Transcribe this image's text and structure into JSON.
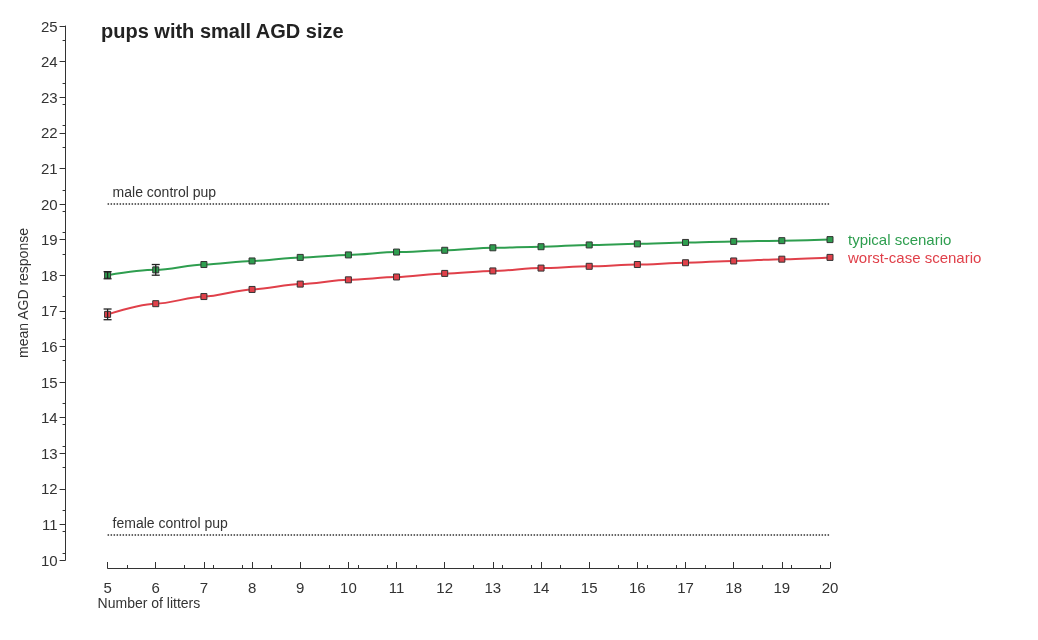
{
  "chart_data": {
    "type": "line",
    "title": "pups with small AGD size",
    "xlabel": "Number of litters",
    "ylabel": "mean AGD response",
    "x": [
      5,
      6,
      7,
      8,
      9,
      10,
      11,
      12,
      13,
      14,
      15,
      16,
      17,
      18,
      19,
      20
    ],
    "series": [
      {
        "name": "typical scenario",
        "color": "#2e9e4f",
        "values": [
          18.0,
          18.15,
          18.3,
          18.4,
          18.5,
          18.57,
          18.65,
          18.7,
          18.77,
          18.8,
          18.85,
          18.88,
          18.92,
          18.95,
          18.97,
          19.0
        ],
        "errors": [
          0.1,
          0.15,
          null,
          null,
          null,
          null,
          null,
          null,
          null,
          null,
          null,
          null,
          null,
          null,
          null,
          null
        ]
      },
      {
        "name": "worst-case scenario",
        "color": "#e0404a",
        "values": [
          16.9,
          17.2,
          17.4,
          17.6,
          17.75,
          17.87,
          17.95,
          18.05,
          18.12,
          18.2,
          18.25,
          18.3,
          18.35,
          18.4,
          18.45,
          18.5
        ],
        "errors": [
          0.15,
          null,
          null,
          null,
          null,
          null,
          null,
          null,
          null,
          null,
          null,
          null,
          null,
          null,
          null,
          null
        ]
      }
    ],
    "xlim": [
      5,
      20
    ],
    "xticks": [
      5,
      6,
      7,
      8,
      9,
      10,
      11,
      12,
      13,
      14,
      15,
      16,
      17,
      18,
      19,
      20
    ],
    "ylim": [
      10,
      25
    ],
    "yticks": [
      10,
      11,
      12,
      13,
      14,
      15,
      16,
      17,
      18,
      19,
      20,
      21,
      22,
      23,
      24,
      25
    ],
    "ref_lines": [
      {
        "axis": "y",
        "value": 20,
        "label": "male control pup",
        "color": "#333333",
        "line_style": "dotted"
      },
      {
        "axis": "y",
        "value": 10.7,
        "label": "female control pup",
        "color": "#333333",
        "line_style": "dotted"
      }
    ],
    "grid": false,
    "legend": false,
    "marker": "square",
    "line_style": "solid"
  }
}
